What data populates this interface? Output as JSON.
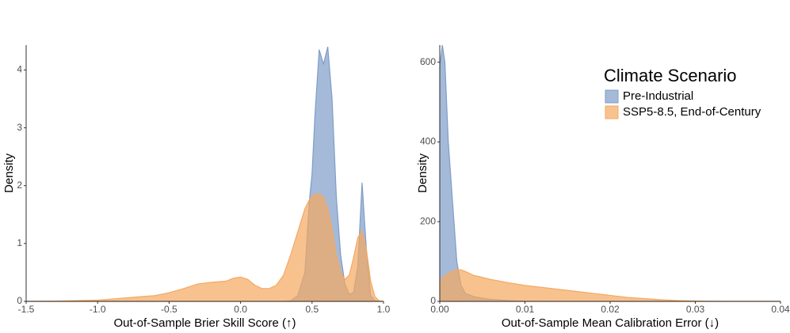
{
  "chart_data": [
    {
      "type": "area",
      "xlabel": "Out-of-Sample Brier Skill Score (↑)",
      "ylabel": "Density",
      "x": [
        -1.5,
        -1.3,
        -1.2,
        -1.1,
        -1.0,
        -0.9,
        -0.8,
        -0.7,
        -0.6,
        -0.5,
        -0.4,
        -0.3,
        -0.2,
        -0.1,
        -0.05,
        0.0,
        0.05,
        0.1,
        0.15,
        0.2,
        0.25,
        0.3,
        0.35,
        0.4,
        0.45,
        0.48,
        0.5,
        0.52,
        0.55,
        0.58,
        0.61,
        0.64,
        0.67,
        0.7,
        0.73,
        0.76,
        0.79,
        0.82,
        0.85,
        0.88,
        0.91,
        0.94,
        0.97,
        1.0
      ],
      "series": [
        {
          "name": "Pre-Industrial",
          "color": "#7f9cc8",
          "values": [
            0,
            0,
            0,
            0,
            0,
            0,
            0,
            0,
            0,
            0,
            0,
            0,
            0,
            0,
            0,
            0,
            0,
            0,
            0,
            0,
            0,
            0,
            0.01,
            0.1,
            0.5,
            1.7,
            2.2,
            3.2,
            4.35,
            4.1,
            4.4,
            3.5,
            1.8,
            0.8,
            0.3,
            0.12,
            0.15,
            0.6,
            2.05,
            0.9,
            0.1,
            0.01,
            0,
            0
          ]
        },
        {
          "name": "SSP5-8.5, End-of-Century",
          "color": "#f5a860",
          "values": [
            0,
            0.005,
            0.01,
            0.015,
            0.02,
            0.04,
            0.06,
            0.08,
            0.1,
            0.15,
            0.22,
            0.3,
            0.33,
            0.35,
            0.4,
            0.42,
            0.38,
            0.28,
            0.22,
            0.22,
            0.28,
            0.45,
            0.8,
            1.2,
            1.6,
            1.75,
            1.82,
            1.85,
            1.86,
            1.8,
            1.6,
            1.25,
            0.8,
            0.5,
            0.38,
            0.45,
            0.75,
            1.1,
            1.22,
            0.9,
            0.35,
            0.08,
            0.01,
            0
          ]
        }
      ],
      "xlim": [
        -1.5,
        1.0
      ],
      "ylim": [
        0,
        4.43
      ],
      "xticks": [
        -1.5,
        {
          "value": -1.0,
          "label": "-1.0"
        },
        -0.5,
        {
          "value": 0.0,
          "label": "0.0"
        },
        0.5,
        {
          "value": 1.0,
          "label": "1.0"
        }
      ],
      "yticks": [
        0,
        1,
        2,
        3,
        4
      ],
      "grid": false
    },
    {
      "type": "area",
      "xlabel": "Out-of-Sample Mean Calibration Error (↓)",
      "ylabel": "Density",
      "legend_title": "Climate Scenario",
      "legend": "top-right",
      "x": [
        0,
        0.0003,
        0.0006,
        0.001,
        0.0015,
        0.002,
        0.0025,
        0.003,
        0.004,
        0.005,
        0.006,
        0.008,
        0.01,
        0.012,
        0.014,
        0.016,
        0.018,
        0.02,
        0.022,
        0.024,
        0.026,
        0.028,
        0.03,
        0.032,
        0.034,
        0.036,
        0.04
      ],
      "series": [
        {
          "name": "Pre-Industrial",
          "color": "#7f9cc8",
          "values": [
            590,
            643,
            600,
            400,
            250,
            100,
            40,
            20,
            12,
            8,
            5,
            2,
            0.5,
            0,
            0,
            0,
            0,
            0,
            0,
            0,
            0,
            0,
            0,
            0,
            0,
            0,
            0
          ]
        },
        {
          "name": "SSP5-8.5, End-of-Century",
          "color": "#f5a860",
          "values": [
            50,
            58,
            64,
            70,
            76,
            80,
            79,
            75,
            65,
            60,
            55,
            47,
            40,
            35,
            30,
            25,
            20,
            15,
            10,
            7,
            4,
            2,
            1,
            0.3,
            0,
            0,
            0
          ]
        }
      ],
      "xlim": [
        0,
        0.04
      ],
      "ylim": [
        0,
        643
      ],
      "xticks": [
        {
          "value": 0,
          "label": "0.00"
        },
        0.01,
        0.02,
        0.03,
        0.04
      ],
      "yticks": [
        0,
        200,
        400,
        600
      ],
      "grid": false
    }
  ]
}
